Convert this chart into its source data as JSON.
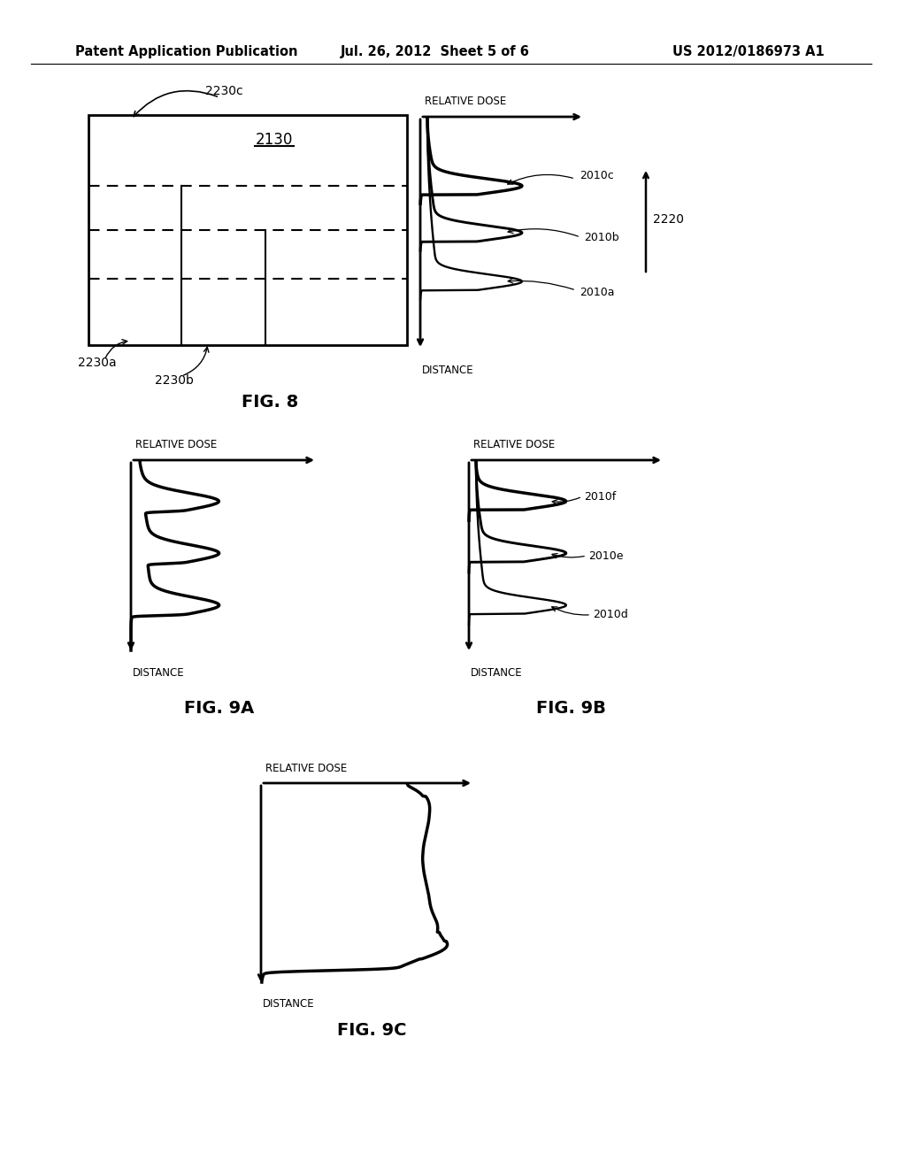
{
  "bg_color": "#ffffff",
  "header_text": "Patent Application Publication",
  "header_date": "Jul. 26, 2012  Sheet 5 of 6",
  "header_patent": "US 2012/0186973 A1",
  "fig8_label": "FIG. 8",
  "fig9a_label": "FIG. 9A",
  "fig9b_label": "FIG. 9B",
  "fig9c_label": "FIG. 9C"
}
